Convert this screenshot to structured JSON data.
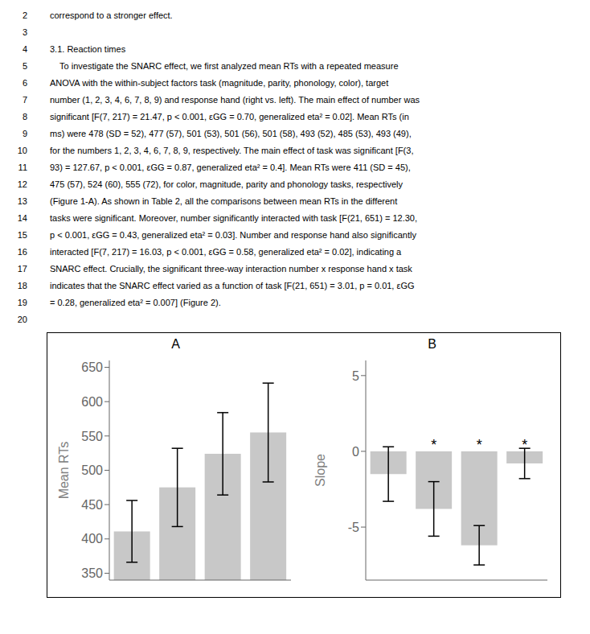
{
  "annotations": [
    {
      "line": "2",
      "text": "correspond to a stronger effect."
    },
    {
      "line": "3"
    },
    {
      "line": "4",
      "text": "3.1. Reaction times"
    },
    {
      "line": "5",
      "text": "    To investigate the SNARC effect, we first analyzed mean RTs with a repeated measure"
    },
    {
      "line": "6",
      "text": "ANOVA with the within-subject factors task (magnitude, parity, phonology, color), target"
    },
    {
      "line": "7",
      "text": "number (1, 2, 3, 4, 6, 7, 8, 9) and response hand (right vs. left). The main effect of number was"
    },
    {
      "line": "8",
      "text": "significant [F(7, 217) = 21.47, p < 0.001, εGG = 0.70, generalized eta² = 0.02]. Mean RTs (in"
    },
    {
      "line": "9",
      "text": "ms) were 478 (SD = 52), 477 (57), 501 (53), 501 (56), 501 (58), 493 (52), 485 (53), 493 (49),"
    },
    {
      "line": "10",
      "text": "for the numbers 1, 2, 3, 4, 6, 7, 8, 9, respectively. The main effect of task was significant [F(3,"
    },
    {
      "line": "11",
      "text": "93) = 127.67, p < 0.001, εGG = 0.87, generalized eta² = 0.4]. Mean RTs were 411 (SD = 45),"
    },
    {
      "line": "12",
      "text": "475 (57), 524 (60), 555 (72), for color, magnitude, parity and phonology tasks, respectively"
    },
    {
      "line": "13",
      "text": "(Figure 1-A). As shown in Table 2, all the comparisons between mean RTs in the different"
    },
    {
      "line": "14",
      "text": "tasks were significant. Moreover, number significantly interacted with task [F(21, 651) = 12.30,"
    },
    {
      "line": "15",
      "text": "p < 0.001, εGG = 0.43, generalized eta² = 0.03]. Number and response hand also significantly"
    },
    {
      "line": "16",
      "text": "interacted [F(7, 217) = 16.03, p < 0.001, εGG = 0.58, generalized eta² = 0.02], indicating a"
    },
    {
      "line": "17",
      "text": "SNARC effect. Crucially, the significant three-way interaction number x response hand x task"
    },
    {
      "line": "18",
      "text": "indicates that the SNARC effect varied as a function of task [F(21, 651) = 3.01, p = 0.01, εGG"
    },
    {
      "line": "19",
      "text": "= 0.28, generalized eta² = 0.007] (Figure 2)."
    },
    {
      "line": "20"
    }
  ],
  "chart_data": [
    {
      "type": "bar",
      "title": "A",
      "categories": [
        null,
        null,
        null,
        null
      ],
      "values": [
        411,
        475,
        524,
        555
      ],
      "errors": [
        45,
        57,
        60,
        72
      ],
      "ylabel": "Mean RTs",
      "ylim": [
        340,
        660
      ],
      "yticks": [
        350,
        400,
        450,
        500,
        550,
        600,
        650
      ],
      "color": "#c8c8c8",
      "grid": false,
      "tick_labels": "y"
    },
    {
      "type": "bar",
      "title": "B",
      "categories": [
        null,
        null,
        null,
        null
      ],
      "values": [
        -1.5,
        -3.8,
        -6.2,
        -0.8
      ],
      "errors": [
        1.8,
        1.8,
        1.3,
        1.0
      ],
      "annotations": [
        null,
        "*",
        "*",
        "*"
      ],
      "ylabel": "Slope",
      "ylim": [
        -8.5,
        6
      ],
      "yticks": [
        -5,
        0,
        5
      ],
      "color": "#c8c8c8",
      "grid": false,
      "tick_labels": "y"
    }
  ]
}
